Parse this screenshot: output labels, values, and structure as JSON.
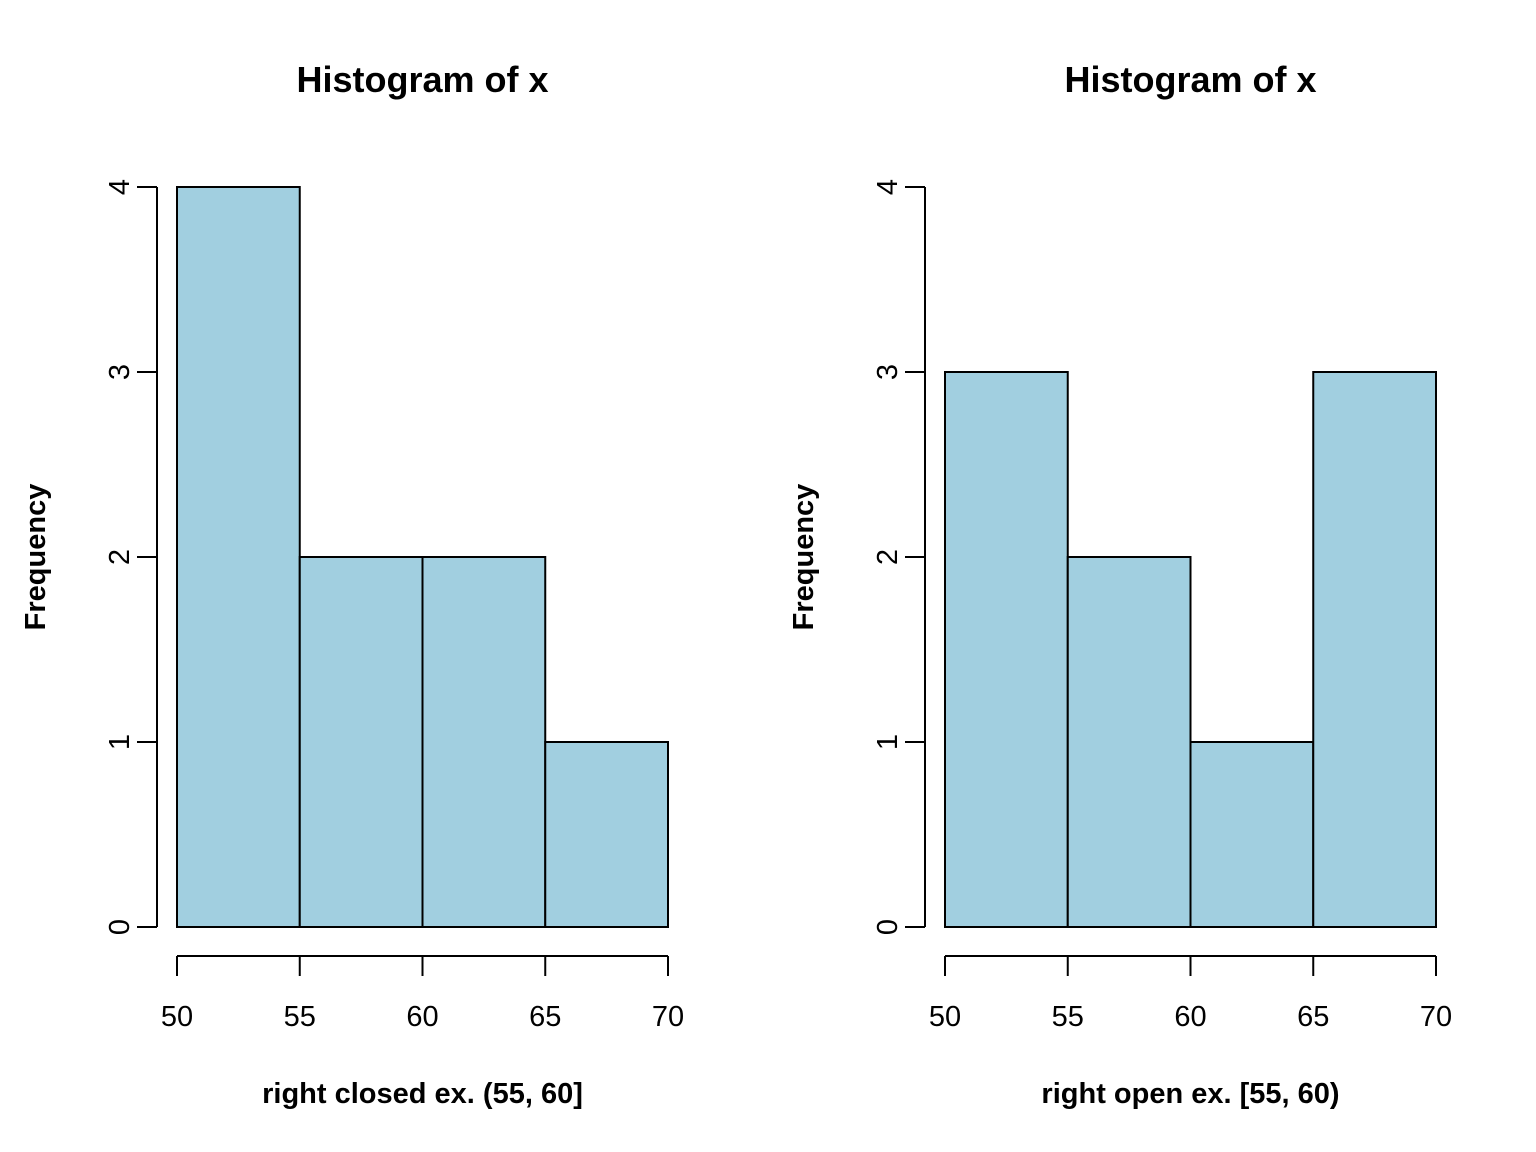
{
  "chart_data": [
    {
      "type": "bar",
      "title": "Histogram of x",
      "xlabel": "right closed ex. (55, 60]",
      "ylabel": "Frequency",
      "bins": [
        [
          50,
          55
        ],
        [
          55,
          60
        ],
        [
          60,
          65
        ],
        [
          65,
          70
        ]
      ],
      "values": [
        4,
        2,
        2,
        1
      ],
      "xticks": [
        50,
        55,
        60,
        65,
        70
      ],
      "yticks": [
        0,
        1,
        2,
        3,
        4
      ],
      "xlim": [
        50,
        70
      ],
      "ylim": [
        0,
        4
      ],
      "bar_color": "#A1CFE0",
      "grid": false,
      "legend": "none"
    },
    {
      "type": "bar",
      "title": "Histogram of x",
      "xlabel": "right open ex. [55, 60)",
      "ylabel": "Frequency",
      "bins": [
        [
          50,
          55
        ],
        [
          55,
          60
        ],
        [
          60,
          65
        ],
        [
          65,
          70
        ]
      ],
      "values": [
        3,
        2,
        1,
        3
      ],
      "xticks": [
        50,
        55,
        60,
        65,
        70
      ],
      "yticks": [
        0,
        1,
        2,
        3,
        4
      ],
      "xlim": [
        50,
        70
      ],
      "ylim": [
        0,
        4
      ],
      "bar_color": "#A1CFE0",
      "grid": false,
      "legend": "none"
    }
  ]
}
